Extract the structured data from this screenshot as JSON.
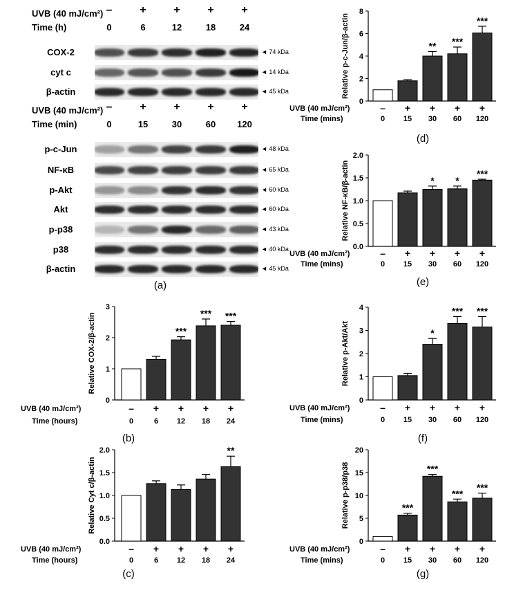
{
  "panel_a": {
    "caption": "(a)",
    "block1": {
      "uvb_label": "UVB (40 mJ/cm²)",
      "time_label": "Time (h)",
      "uvb_values": [
        "–",
        "+",
        "+",
        "+",
        "+"
      ],
      "time_values": [
        "0",
        "6",
        "12",
        "18",
        "24"
      ],
      "rows": [
        {
          "protein": "COX-2",
          "kda": "74 kDa",
          "intensity": [
            0.72,
            0.82,
            0.88,
            0.95,
            0.92
          ]
        },
        {
          "protein": "cyt c",
          "kda": "14 kDa",
          "intensity": [
            0.62,
            0.7,
            0.72,
            0.82,
            0.98
          ]
        },
        {
          "protein": "β-actin",
          "kda": "45 kDa",
          "intensity": [
            0.9,
            0.9,
            0.9,
            0.9,
            0.9
          ]
        }
      ]
    },
    "block2": {
      "uvb_label": "UVB (40 mJ/cm²)",
      "time_label": "Time (min)",
      "uvb_values": [
        "–",
        "+",
        "+",
        "+",
        "+"
      ],
      "time_values": [
        "0",
        "15",
        "30",
        "60",
        "120"
      ],
      "rows": [
        {
          "protein": "p-c-Jun",
          "kda": "48 kDa",
          "intensity": [
            0.35,
            0.55,
            0.78,
            0.82,
            0.95
          ]
        },
        {
          "protein": "NF-κB",
          "kda": "65 kDa",
          "intensity": [
            0.75,
            0.78,
            0.8,
            0.8,
            0.82
          ]
        },
        {
          "protein": "p-Akt",
          "kda": "60 kDa",
          "intensity": [
            0.4,
            0.45,
            0.85,
            0.88,
            0.85
          ]
        },
        {
          "protein": "Akt",
          "kda": "60 kDa",
          "intensity": [
            0.88,
            0.88,
            0.88,
            0.88,
            0.88
          ]
        },
        {
          "protein": "p-p38",
          "kda": "43 kDa",
          "intensity": [
            0.25,
            0.55,
            0.9,
            0.6,
            0.65
          ]
        },
        {
          "protein": "p38",
          "kda": "40 kDa",
          "intensity": [
            0.88,
            0.88,
            0.88,
            0.88,
            0.88
          ]
        },
        {
          "protein": "β-actin",
          "kda": "45 kDa",
          "intensity": [
            0.9,
            0.9,
            0.9,
            0.9,
            0.9
          ]
        }
      ]
    }
  },
  "chart_data": [
    {
      "id": "b",
      "caption": "(b)",
      "type": "bar",
      "ylabel": "Relative COX-2/β-actin",
      "ylim": [
        0,
        3
      ],
      "yticks": [
        "0",
        "1",
        "2",
        "3"
      ],
      "categories": [
        "0",
        "6",
        "12",
        "18",
        "24"
      ],
      "values": [
        1.0,
        1.3,
        1.93,
        2.38,
        2.4
      ],
      "errors": [
        0,
        0.1,
        0.1,
        0.22,
        0.12
      ],
      "significance": [
        "",
        "",
        "***",
        "***",
        "***"
      ],
      "row1_label": "UVB (40 mJ/cm²)",
      "row1_values": [
        "–",
        "+",
        "+",
        "+",
        "+"
      ],
      "row2_label": "Time (hours)"
    },
    {
      "id": "c",
      "caption": "(c)",
      "type": "bar",
      "ylabel": "Relative Cyt c/β-actin",
      "ylim": [
        0,
        2
      ],
      "yticks": [
        "0.0",
        "0.5",
        "1.0",
        "1.5",
        "2.0"
      ],
      "categories": [
        "0",
        "6",
        "12",
        "18",
        "24"
      ],
      "values": [
        1.0,
        1.26,
        1.13,
        1.36,
        1.63
      ],
      "errors": [
        0,
        0.06,
        0.1,
        0.1,
        0.23
      ],
      "significance": [
        "",
        "",
        "",
        "",
        "**"
      ],
      "row1_label": "UVB (40 mJ/cm²)",
      "row1_values": [
        "–",
        "+",
        "+",
        "+",
        "+"
      ],
      "row2_label": "Time (hours)"
    },
    {
      "id": "d",
      "caption": "(d)",
      "type": "bar",
      "ylabel": "Relative p-c-Jun/β-actin",
      "ylim": [
        0,
        8
      ],
      "yticks": [
        "0",
        "2",
        "4",
        "6",
        "8"
      ],
      "categories": [
        "0",
        "15",
        "30",
        "60",
        "120"
      ],
      "values": [
        1.0,
        1.8,
        4.0,
        4.2,
        6.05
      ],
      "errors": [
        0,
        0.1,
        0.4,
        0.6,
        0.6
      ],
      "significance": [
        "",
        "",
        "**",
        "***",
        "***"
      ],
      "row1_label": "UVB (40 mJ/cm²)",
      "row1_values": [
        "–",
        "+",
        "+",
        "+",
        "+"
      ],
      "row2_label": "Time (mins)"
    },
    {
      "id": "e",
      "caption": "(e)",
      "type": "bar",
      "ylabel": "Relative NF-κB/β-actin",
      "ylim": [
        0,
        2
      ],
      "yticks": [
        "0.0",
        "0.5",
        "1.0",
        "1.5",
        "2.0"
      ],
      "categories": [
        "0",
        "15",
        "30",
        "60",
        "120"
      ],
      "values": [
        1.0,
        1.17,
        1.25,
        1.26,
        1.45
      ],
      "errors": [
        0,
        0.04,
        0.07,
        0.06,
        0.02
      ],
      "significance": [
        "",
        "",
        "*",
        "*",
        "***"
      ],
      "row1_label": "UVB (40 mJ/cm²)",
      "row1_values": [
        "–",
        "+",
        "+",
        "+",
        "+"
      ],
      "row2_label": "Time (mins)"
    },
    {
      "id": "f",
      "caption": "(f)",
      "type": "bar",
      "ylabel": "Relative p-Akt/Akt",
      "ylim": [
        0,
        4
      ],
      "yticks": [
        "0",
        "1",
        "2",
        "3",
        "4"
      ],
      "categories": [
        "0",
        "15",
        "30",
        "60",
        "120"
      ],
      "values": [
        1.0,
        1.05,
        2.4,
        3.3,
        3.15
      ],
      "errors": [
        0,
        0.1,
        0.25,
        0.3,
        0.45
      ],
      "significance": [
        "",
        "",
        "*",
        "***",
        "***"
      ],
      "row1_label": "UVB (40 mJ/cm²)",
      "row1_values": [
        "–",
        "+",
        "+",
        "+",
        "+"
      ],
      "row2_label": "Time (mins)"
    },
    {
      "id": "g",
      "caption": "(g)",
      "type": "bar",
      "ylabel": "Relative p-p38/p38",
      "ylim": [
        0,
        20
      ],
      "yticks": [
        "0",
        "5",
        "10",
        "15",
        "20"
      ],
      "categories": [
        "0",
        "15",
        "30",
        "60",
        "120"
      ],
      "values": [
        1.0,
        5.7,
        14.2,
        8.6,
        9.4
      ],
      "errors": [
        0,
        0.4,
        0.4,
        0.6,
        1.1
      ],
      "significance": [
        "",
        "***",
        "***",
        "***",
        "***"
      ],
      "row1_label": "UVB (40 mJ/cm²)",
      "row1_values": [
        "–",
        "+",
        "+",
        "+",
        "+"
      ],
      "row2_label": "Time (mins)"
    }
  ]
}
